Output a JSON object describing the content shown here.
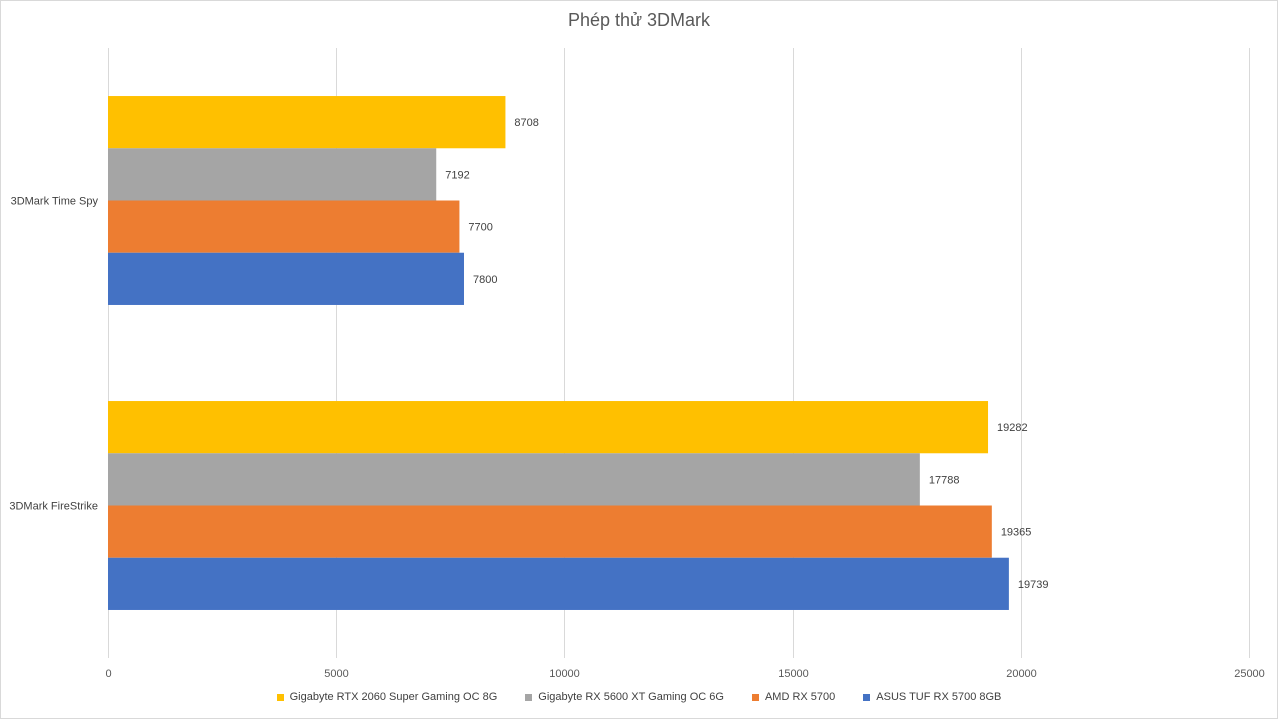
{
  "chart_data": {
    "type": "bar",
    "orientation": "horizontal",
    "title": "Phép thử 3DMark",
    "categories": [
      "3DMark Time Spy",
      "3DMark FireStrike"
    ],
    "series": [
      {
        "name": "Gigabyte RTX 2060 Super Gaming OC 8G",
        "color": "#FFC000",
        "values": [
          8708,
          19282
        ]
      },
      {
        "name": "Gigabyte RX 5600 XT Gaming OC 6G",
        "color": "#A5A5A5",
        "values": [
          7192,
          17788
        ]
      },
      {
        "name": "AMD RX 5700",
        "color": "#ED7D31",
        "values": [
          7700,
          19365
        ]
      },
      {
        "name": "ASUS TUF RX 5700 8GB",
        "color": "#4472C4",
        "values": [
          7800,
          19739
        ]
      }
    ],
    "xlim": [
      0,
      25000
    ],
    "x_ticks": [
      0,
      5000,
      10000,
      15000,
      20000,
      25000
    ],
    "gridlines": true,
    "data_labels": true,
    "legend_position": "bottom"
  }
}
